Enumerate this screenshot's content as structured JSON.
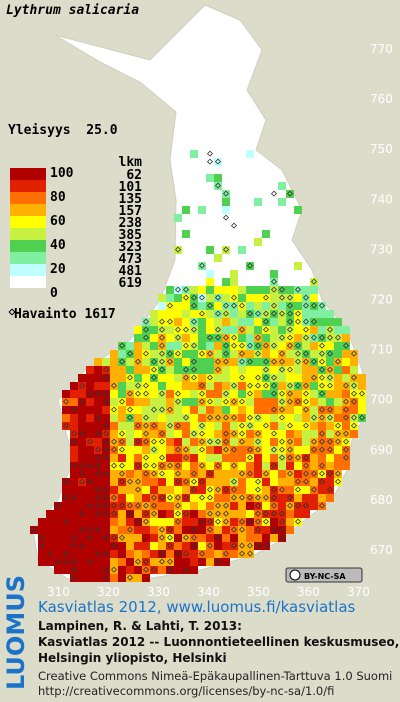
{
  "title": "Lythrum salicaria",
  "frequency": "Yleisyys  25.0",
  "legend": {
    "percent_labels": [
      100,
      80,
      60,
      40,
      20,
      0
    ],
    "count_header": "lkm",
    "counts": [
      62,
      101,
      135,
      157,
      238,
      385,
      323,
      473,
      481,
      619
    ]
  },
  "observations": "Havainto 1617",
  "y_ticks": [
    770,
    760,
    750,
    740,
    730,
    720,
    710,
    700,
    690,
    680,
    670
  ],
  "x_ticks": [
    310,
    320,
    330,
    340,
    350,
    360,
    370
  ],
  "license_badge": "BY-NC-SA",
  "footer": {
    "brand": "LUOMUS",
    "link": "Kasviatlas 2012, www.luomus.fi/kasviatlas",
    "lines": [
      "Lampinen, R. & Lahti, T. 2013:",
      "Kasviatlas 2012 -- Luonnontieteellinen keskusmuseo,",
      "Helsingin yliopisto, Helsinki"
    ],
    "license": "Creative Commons Nimeä-Epäkaupallinen-Tarttuva 1.0 Suomi",
    "license_url": "http://creativecommons.org/licenses/by-nc-sa/1.0/fi"
  }
}
